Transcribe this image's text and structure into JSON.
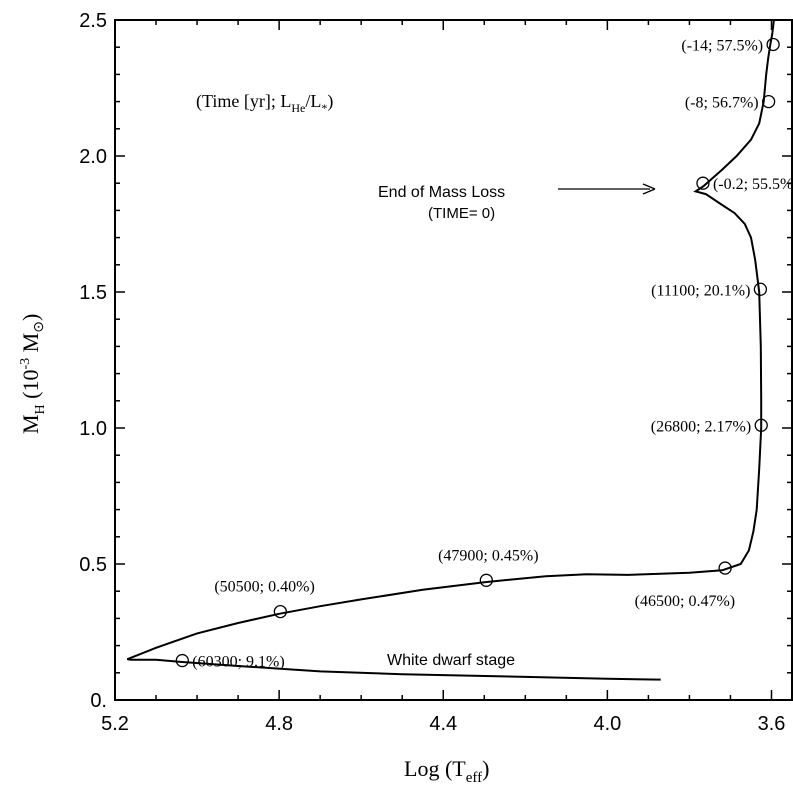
{
  "chart_data": {
    "type": "line",
    "xlim": [
      5.2,
      3.55
    ],
    "ylim": [
      0,
      2.5
    ],
    "x_ticks": [
      5.2,
      4.8,
      4.4,
      4.0,
      3.6
    ],
    "x_tick_labels": [
      "5.2",
      "4.8",
      "4.4",
      "4.0",
      "3.6"
    ],
    "y_ticks": [
      0,
      0.5,
      1.0,
      1.5,
      2.0,
      2.5
    ],
    "y_tick_labels": [
      "0.",
      "0.5",
      "1.0",
      "1.5",
      "2.0",
      "2.5"
    ],
    "xlabel": {
      "main": "Log (T",
      "sub": "eff",
      "end": ")"
    },
    "ylabel": {
      "main": "M",
      "sub": "H",
      "mid": " (10",
      "sup": "-3",
      "mass": " M",
      "sun": "⊙",
      "end": ")"
    },
    "legend_note": {
      "open": "(Time [yr]; L",
      "sub1": "He",
      "slash": "/L",
      "sub2": "*",
      "close": ")"
    },
    "track": [
      [
        3.594,
        2.5
      ],
      [
        3.598,
        2.45
      ],
      [
        3.603,
        2.41
      ],
      [
        3.608,
        2.36
      ],
      [
        3.613,
        2.3
      ],
      [
        3.619,
        2.2
      ],
      [
        3.63,
        2.12
      ],
      [
        3.65,
        2.06
      ],
      [
        3.685,
        2.0
      ],
      [
        3.72,
        1.95
      ],
      [
        3.75,
        1.91
      ],
      [
        3.765,
        1.89
      ],
      [
        3.785,
        1.87
      ],
      [
        3.76,
        1.86
      ],
      [
        3.74,
        1.84
      ],
      [
        3.72,
        1.82
      ],
      [
        3.69,
        1.79
      ],
      [
        3.665,
        1.75
      ],
      [
        3.65,
        1.7
      ],
      [
        3.64,
        1.62
      ],
      [
        3.63,
        1.5
      ],
      [
        3.626,
        1.3
      ],
      [
        3.625,
        1.1
      ],
      [
        3.625,
        1.0
      ],
      [
        3.63,
        0.85
      ],
      [
        3.636,
        0.7
      ],
      [
        3.644,
        0.62
      ],
      [
        3.655,
        0.55
      ],
      [
        3.675,
        0.5
      ],
      [
        3.72,
        0.477
      ],
      [
        3.8,
        0.468
      ],
      [
        3.95,
        0.46
      ],
      [
        4.05,
        0.462
      ],
      [
        4.15,
        0.455
      ],
      [
        4.3,
        0.433
      ],
      [
        4.45,
        0.405
      ],
      [
        4.6,
        0.37
      ],
      [
        4.7,
        0.345
      ],
      [
        4.8,
        0.317
      ],
      [
        4.9,
        0.283
      ],
      [
        5.0,
        0.245
      ],
      [
        5.1,
        0.192
      ],
      [
        5.17,
        0.15
      ],
      [
        5.16,
        0.148
      ],
      [
        5.1,
        0.148
      ],
      [
        5.04,
        0.14
      ],
      [
        4.9,
        0.125
      ],
      [
        4.7,
        0.105
      ],
      [
        4.5,
        0.095
      ],
      [
        4.2,
        0.085
      ],
      [
        4.0,
        0.078
      ],
      [
        3.87,
        0.075
      ]
    ],
    "points": [
      {
        "x": 3.596,
        "y": 2.41,
        "label": "(-14; 57.5%)",
        "side": "left"
      },
      {
        "x": 3.607,
        "y": 2.2,
        "label": "(-8; 56.7%)",
        "side": "left"
      },
      {
        "x": 3.767,
        "y": 1.9,
        "label": "(-0.2; 55.5%",
        "side": "right"
      },
      {
        "x": 3.627,
        "y": 1.51,
        "label": "(11100; 20.1%)",
        "side": "left"
      },
      {
        "x": 3.625,
        "y": 1.01,
        "label": "(26800; 2.17%)",
        "side": "left"
      },
      {
        "x": 3.713,
        "y": 0.485,
        "label": "(46500; 0.47%)",
        "side": "below"
      },
      {
        "x": 4.295,
        "y": 0.44,
        "label": "(47900; 0.45%)",
        "side": "above"
      },
      {
        "x": 4.797,
        "y": 0.325,
        "label": "(50500;  0.40%)",
        "side": "aboveleft"
      },
      {
        "x": 5.036,
        "y": 0.145,
        "label": "(60300; 9.1%)",
        "side": "right"
      }
    ],
    "annotations": [
      {
        "text": "End of Mass Loss",
        "line2": "(TIME= 0)"
      },
      {
        "text": "White dwarf stage"
      }
    ]
  }
}
